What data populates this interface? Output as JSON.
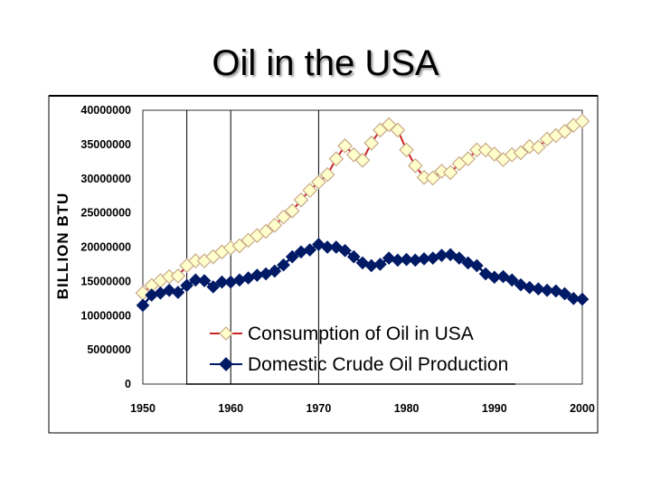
{
  "slide": {
    "title": "Oil in the USA"
  },
  "chart_data": {
    "type": "line",
    "title": "",
    "xlabel": "",
    "ylabel": "BILLION BTU",
    "xlim": [
      1950,
      2000
    ],
    "ylim": [
      0,
      40000000
    ],
    "x_ticks": [
      "1950",
      "1960",
      "1970",
      "1980",
      "1990",
      "2000"
    ],
    "y_ticks": [
      "0",
      "5000000",
      "10000000",
      "15000000",
      "20000000",
      "25000000",
      "30000000",
      "35000000",
      "40000000"
    ],
    "grid": "vertical lines at 1955, 1960 and 1970",
    "legend_position": "inside-bottom",
    "x": [
      1950,
      1951,
      1952,
      1953,
      1954,
      1955,
      1956,
      1957,
      1958,
      1959,
      1960,
      1961,
      1962,
      1963,
      1964,
      1965,
      1966,
      1967,
      1968,
      1969,
      1970,
      1971,
      1972,
      1973,
      1974,
      1975,
      1976,
      1977,
      1978,
      1979,
      1980,
      1981,
      1982,
      1983,
      1984,
      1985,
      1986,
      1987,
      1988,
      1989,
      1990,
      1991,
      1992,
      1993,
      1994,
      1995,
      1996,
      1997,
      1998,
      1999,
      2000
    ],
    "series": [
      {
        "name": "Consumption of Oil in USA",
        "color": "#cc2222",
        "marker_fill": "#ffffcc",
        "marker_stroke": "#c9a989",
        "marker": "diamond",
        "values": [
          13300000,
          14400000,
          15100000,
          15700000,
          15800000,
          17300000,
          18000000,
          18000000,
          18600000,
          19300000,
          19900000,
          20200000,
          21000000,
          21700000,
          22300000,
          23200000,
          24400000,
          25300000,
          26900000,
          28300000,
          29500000,
          30600000,
          32900000,
          34800000,
          33500000,
          32700000,
          35200000,
          37100000,
          37900000,
          37100000,
          34200000,
          31900000,
          30200000,
          30100000,
          31100000,
          30900000,
          32200000,
          32900000,
          34200000,
          34200000,
          33600000,
          32800000,
          33500000,
          33800000,
          34700000,
          34600000,
          35800000,
          36300000,
          36900000,
          37800000,
          38400000
        ]
      },
      {
        "name": "Domestic Crude Oil Production",
        "color": "#001a66",
        "marker_fill": "#001a66",
        "marker_stroke": "#001a66",
        "marker": "diamond",
        "values": [
          11500000,
          13000000,
          13300000,
          13700000,
          13400000,
          14400000,
          15200000,
          15100000,
          14200000,
          14900000,
          14900000,
          15200000,
          15500000,
          15900000,
          16100000,
          16500000,
          17400000,
          18600000,
          19300000,
          19600000,
          20400000,
          20000000,
          20000000,
          19500000,
          18600000,
          17700000,
          17300000,
          17500000,
          18400000,
          18100000,
          18200000,
          18100000,
          18300000,
          18400000,
          18800000,
          18900000,
          18400000,
          17700000,
          17300000,
          16100000,
          15600000,
          15700000,
          15200000,
          14500000,
          14100000,
          13900000,
          13700000,
          13600000,
          13200000,
          12500000,
          12400000
        ]
      }
    ]
  }
}
